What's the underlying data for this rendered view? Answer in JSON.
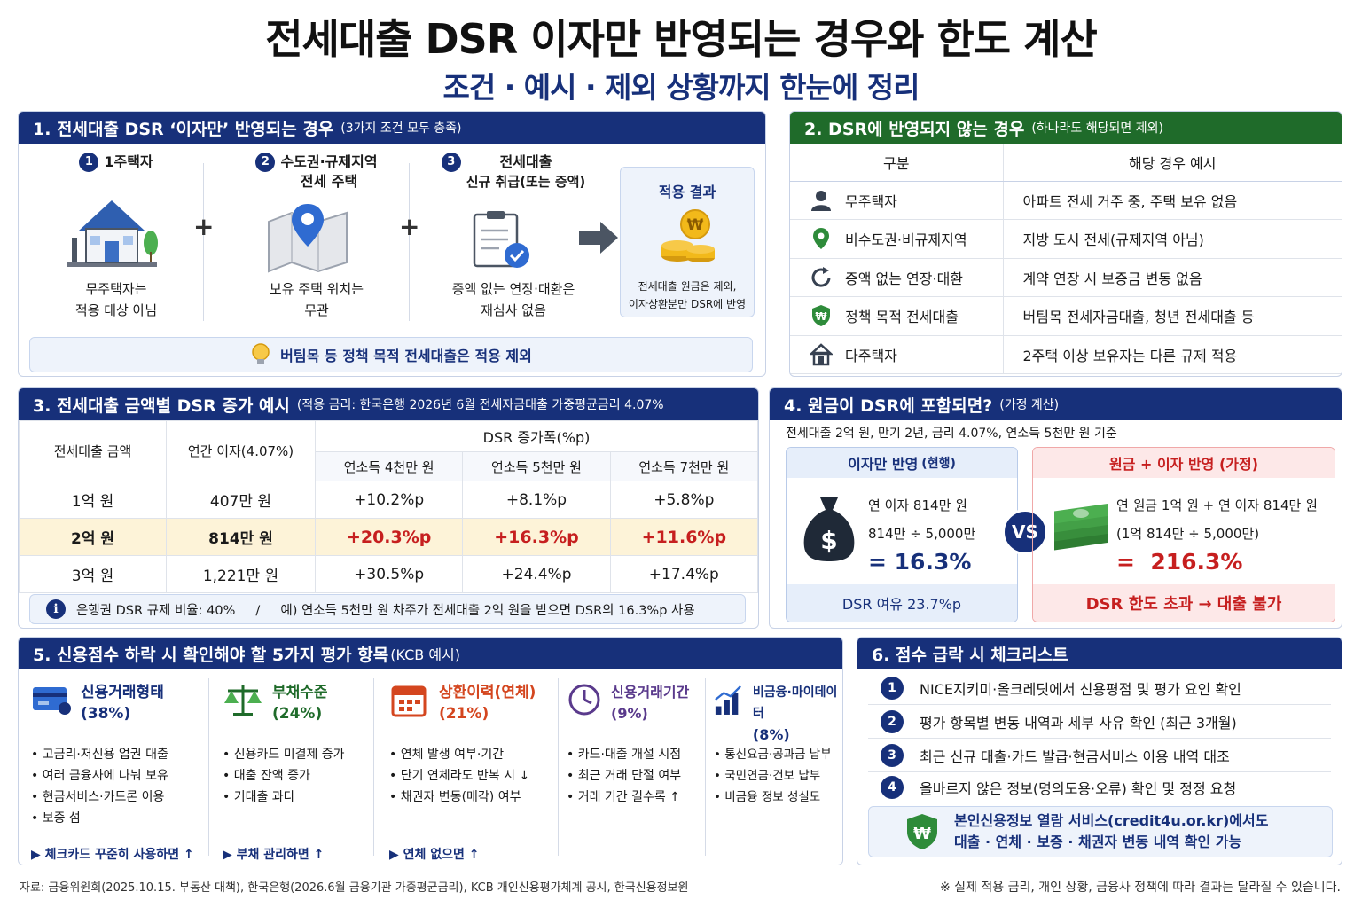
{
  "title": "전세대출 DSR 이자만 반영되는 경우와 한도 계산",
  "subtitle": "조건 · 예시 · 제외 상황까지 한눈에 정리",
  "s1": {
    "head": "1. 전세대출 DSR ‘이자만’ 반영되는 경우",
    "note": "(3가지 조건 모두 충족)",
    "c1_num": "1",
    "c1_title": "1주택자",
    "c1_desc1": "무주택자는",
    "c1_desc2": "적용 대상 아님",
    "c2_num": "2",
    "c2_title1": "수도권·규제지역",
    "c2_title2": "전세 주택",
    "c2_desc1": "보유 주택 위치는",
    "c2_desc2": "무관",
    "c3_num": "3",
    "c3_title1": "전세대출",
    "c3_title2": "신규 취급(또는 증액)",
    "c3_desc1": "증액 없는 연장·대환은",
    "c3_desc2": "재심사 없음",
    "plus": "+",
    "result_title": "적용 결과",
    "result_desc1": "전세대출 원금은 제외,",
    "result_desc2": "이자상환분만 DSR에 반영",
    "tip": "버팀목 등 정책 목적 전세대출은 적용 제외"
  },
  "s2": {
    "head": "2. DSR에 반영되지 않는 경우",
    "note": "(하나라도 해당되면 제외)",
    "col1": "구분",
    "col2": "해당 경우 예시",
    "rows": [
      {
        "icon": "person-icon",
        "cat": "무주택자",
        "ex": "아파트 전세 거주 중, 주택 보유 없음"
      },
      {
        "icon": "location-pin-icon",
        "cat": "비수도권·비규제지역",
        "ex": "지방 도시 전세(규제지역 아님)"
      },
      {
        "icon": "refresh-icon",
        "cat": "증액 없는 연장·대환",
        "ex": "계약 연장 시 보증금 변동 없음"
      },
      {
        "icon": "shield-won-icon",
        "cat": "정책 목적 전세대출",
        "ex": "버팀목 전세자금대출, 청년 전세대출 등"
      },
      {
        "icon": "house-icon",
        "cat": "다주택자",
        "ex": "2주택 이상 보유자는 다른 규제 적용"
      }
    ]
  },
  "s3": {
    "head": "3. 전세대출 금액별 DSR 증가 예시",
    "note": "(적용 금리: 한국은행  2026년 6월 전세자금대출 가중평균금리 4.07%",
    "h_amount": "전세대출 금액",
    "h_interest": "연간 이자(4.07%)",
    "h_dsr": "DSR 증가폭(%p)",
    "h_inc": [
      "연소득 4천만 원",
      "연소득 5천만 원",
      "연소득 7천만 원"
    ],
    "rows": [
      [
        "1억 원",
        "407만 원",
        "+10.2%p",
        "+8.1%p",
        "+5.8%p"
      ],
      [
        "2억 원",
        "814만 원",
        "+20.3%p",
        "+16.3%p",
        "+11.6%p"
      ],
      [
        "3억 원",
        "1,221만 원",
        "+30.5%p",
        "+24.4%p",
        "+17.4%p"
      ]
    ],
    "info": "은행권 DSR 규제 비율: 40%     /     예) 연소득 5천만 원 차주가 전세대출 2억 원을 받으면 DSR의 16.3%p 사용"
  },
  "s4": {
    "head": "4. 원금이 DSR에 포함되면?",
    "note": "(가정 계산)",
    "sub": "전세대출 2억 원, 만기 2년, 금리 4.07%, 연소득 5천만 원 기준",
    "left_head": "이자만 반영",
    "left_head_note": "(현행)",
    "left_l1": "연 이자 814만 원",
    "left_l2": "814만 ÷ 5,000만",
    "left_res": "= 16.3%",
    "left_foot": "DSR 여유 23.7%p",
    "vs": "VS",
    "right_head": "원금 + 이자 반영 (가정)",
    "right_l1": "연 원금 1억 원 + 연 이자 814만 원",
    "right_l2": "(1억 814만 ÷ 5,000만)",
    "right_res": "=  216.3%",
    "right_foot": "DSR 한도 초과 → 대출 불가"
  },
  "s5": {
    "head": "5. 신용점수 하락 시 확인해야 할 5가지 평가 항목",
    "note": "(KCB 예시)",
    "cols": [
      {
        "name": "신용거래형태",
        "pct": "(38%)",
        "color": "#17307a",
        "items": [
          "고금리·저신용 업권 대출",
          "여러 금융사에 나눠 보유",
          "현금서비스·카드론 이용",
          "보증 섬"
        ],
        "foot": "▶ 체크카드 꾸준히 사용하면 ↑"
      },
      {
        "name": "부채수준",
        "pct": "(24%)",
        "color": "#1f6b2a",
        "items": [
          "신용카드 미결제 증가",
          "대출 잔액 증가",
          "기대출 과다"
        ],
        "foot": "▶ 부채 관리하면 ↑"
      },
      {
        "name": "상환이력(연체)",
        "pct": "(21%)",
        "color": "#d4461f",
        "items": [
          "연체 발생 여부·기간",
          "단기 연체라도 반복 시 ↓",
          "채권자 변동(매각) 여부"
        ],
        "foot": "▶ 연체 없으면 ↑"
      },
      {
        "name": "신용거래기간",
        "pct": "(9%)",
        "color": "#5a3a8c",
        "items": [
          "카드·대출 개설 시점",
          "최근 거래 단절 여부",
          "거래 기간 길수록 ↑"
        ],
        "foot": ""
      },
      {
        "name": "비금융·마이데이터",
        "pct": "(8%)",
        "color": "#17307a",
        "items": [
          "통신요금·공과금 납부",
          "국민연금·건보 납부",
          "비금융 정보 성실도"
        ],
        "foot": ""
      }
    ]
  },
  "s6": {
    "head": "6. 점수 급락 시 체크리스트",
    "items": [
      "NICE지키미·올크레딧에서 신용평점 및 평가 요인 확인",
      "평가 항목별 변동 내역과 세부 사유 확인 (최근 3개월)",
      "최근 신규 대출·카드 발급·현금서비스 이용 내역 대조",
      "올바르지 않은 정보(명의도용·오류) 확인 및 정정 요청"
    ],
    "svc1": "본인신용정보 열람 서비스(credit4u.or.kr)에서도",
    "svc2": "대출 · 연체 · 보증 · 채권자 변동 내역 확인 가능"
  },
  "footer_left": "자료: 금융위원회(2025.10.15. 부동산 대책), 한국은행(2026.6월 금융기관 가중평균금리), KCB 개인신용평가체계 공시, 한국신용정보원",
  "footer_right": "※ 실제 적용 금리, 개인 상황, 금융사 정책에 따라 결과는 달라질 수 있습니다."
}
